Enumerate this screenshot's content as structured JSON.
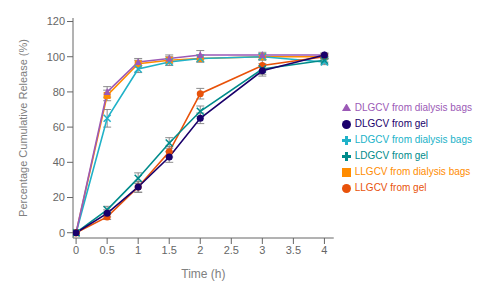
{
  "chart_data": {
    "type": "line",
    "x": [
      0,
      0.5,
      1,
      1.5,
      2,
      3,
      4
    ],
    "series": [
      {
        "name": "LLGCV from dialysis bags",
        "color": "#FF8C00",
        "marker": "square",
        "values": [
          0,
          78,
          96,
          98,
          99,
          100,
          100
        ],
        "yerr": [
          0,
          3,
          2,
          2,
          2,
          1.5,
          1
        ]
      },
      {
        "name": "LDGCV from dialysis bags",
        "color": "#20B2C8",
        "marker": "x",
        "values": [
          0,
          65,
          93,
          97,
          99,
          100,
          97
        ],
        "yerr": [
          0,
          5,
          2,
          2,
          2,
          1.5,
          1.5
        ]
      },
      {
        "name": "DLGCV from dialysis bags",
        "color": "#9B59B6",
        "marker": "triangle",
        "values": [
          0,
          80,
          97,
          99,
          101,
          101,
          101
        ],
        "yerr": [
          0,
          3,
          2,
          2,
          2.5,
          1.5,
          1
        ]
      },
      {
        "name": "LLGCV from gel",
        "color": "#E8520A",
        "marker": "circle",
        "values": [
          0,
          9,
          26,
          46,
          79,
          95,
          100
        ],
        "yerr": [
          0,
          1.5,
          3,
          3,
          3,
          3,
          1
        ]
      },
      {
        "name": "LDGCV from gel",
        "color": "#008B8B",
        "marker": "x",
        "values": [
          0,
          13,
          31,
          51,
          69,
          93,
          98
        ],
        "yerr": [
          0,
          2,
          3,
          3,
          3,
          3,
          1
        ]
      },
      {
        "name": "DLGCV from gel",
        "color": "#1A006B",
        "marker": "circle",
        "values": [
          0,
          11,
          26,
          43,
          65,
          92,
          101
        ],
        "yerr": [
          0,
          2,
          3,
          3,
          3,
          3,
          1
        ]
      }
    ],
    "xlabel": "Time (h)",
    "ylabel": "Percentage Cumulative Release (%)",
    "xlim": [
      -0.05,
      4.15
    ],
    "ylim": [
      -3,
      122
    ],
    "xticks": [
      0,
      0.5,
      1,
      1.5,
      2,
      2.5,
      3,
      3.5,
      4
    ],
    "yticks": [
      0,
      20,
      40,
      60,
      80,
      100,
      120
    ],
    "legend": "right"
  }
}
